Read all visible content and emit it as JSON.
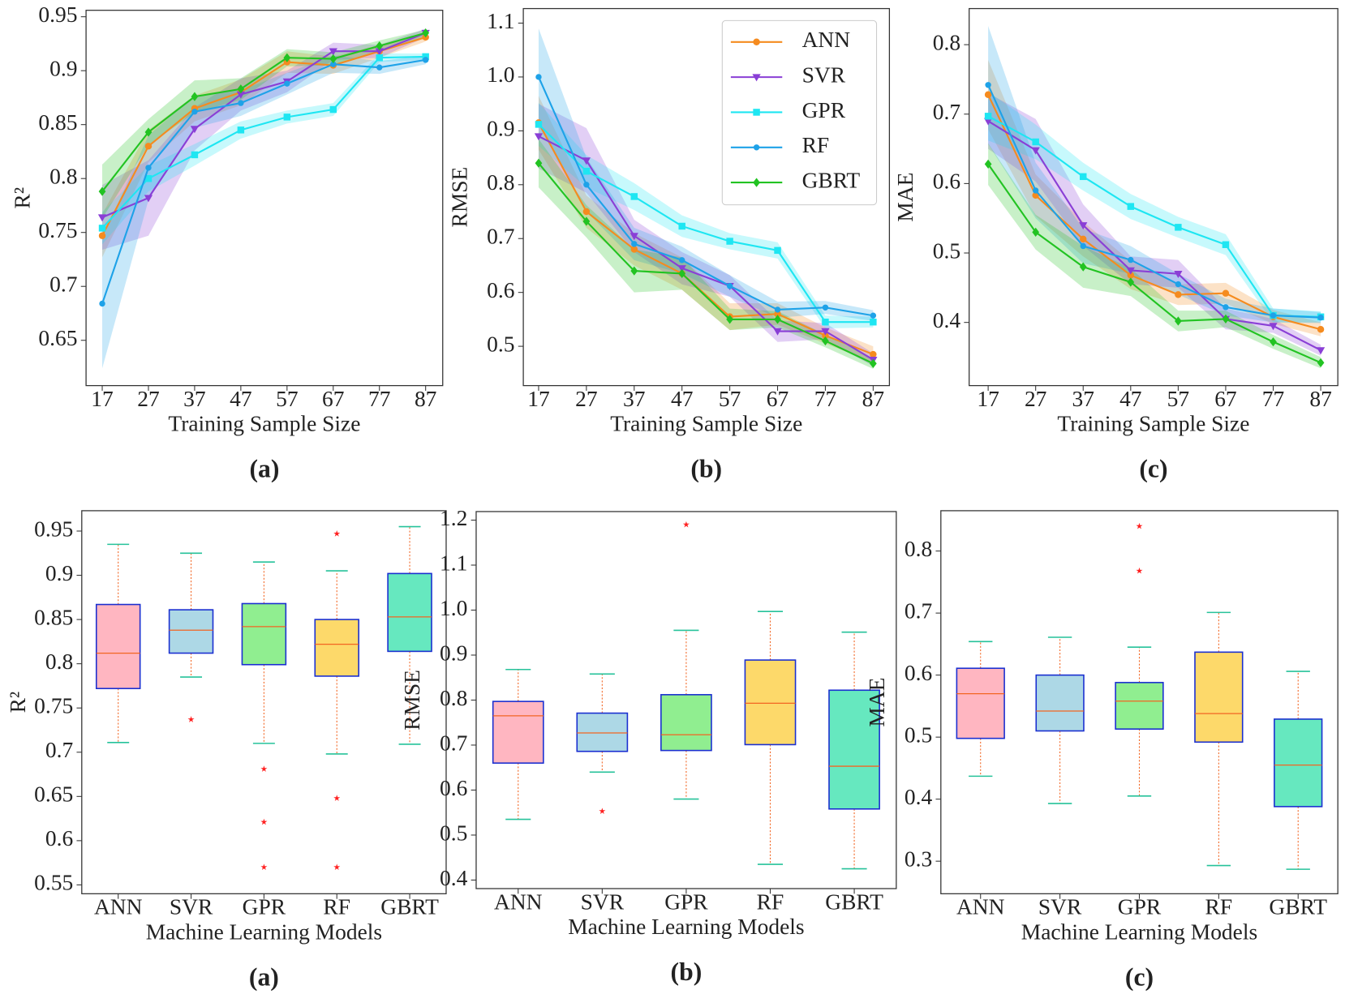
{
  "chart_data": [
    {
      "type": "line",
      "panel_label": "(a)",
      "x_label": "Training Sample Size",
      "y_label": "R²",
      "x": [
        17,
        27,
        37,
        47,
        57,
        67,
        77,
        87
      ],
      "xlim": [
        13.5,
        90.7
      ],
      "xticks": [
        17,
        27,
        37,
        47,
        57,
        67,
        77,
        87
      ],
      "ylim": [
        0.608,
        0.956
      ],
      "yticks": [
        0.65,
        0.7,
        0.75,
        0.8,
        0.85,
        0.9,
        0.95
      ],
      "series": [
        {
          "color": "#f58b1f",
          "marker": "circle",
          "values": [
            0.747,
            0.83,
            0.865,
            0.88,
            0.908,
            0.905,
            0.918,
            0.931
          ],
          "error": [
            0.02,
            0.015,
            0.012,
            0.012,
            0.01,
            0.008,
            0.006,
            0.004
          ]
        },
        {
          "color": "#8a3fd6",
          "marker": "triangle",
          "values": [
            0.764,
            0.782,
            0.846,
            0.878,
            0.89,
            0.918,
            0.918,
            0.935
          ],
          "error": [
            0.03,
            0.035,
            0.02,
            0.015,
            0.01,
            0.008,
            0.006,
            0.004
          ]
        },
        {
          "color": "#1ee6f2",
          "marker": "square",
          "values": [
            0.754,
            0.8,
            0.822,
            0.845,
            0.857,
            0.864,
            0.912,
            0.913
          ],
          "error": [
            0.015,
            0.012,
            0.01,
            0.008,
            0.006,
            0.006,
            0.004,
            0.003
          ]
        },
        {
          "color": "#1ea2e8",
          "marker": "dot",
          "values": [
            0.684,
            0.81,
            0.862,
            0.87,
            0.888,
            0.906,
            0.903,
            0.91
          ],
          "error": [
            0.06,
            0.03,
            0.015,
            0.012,
            0.01,
            0.008,
            0.006,
            0.004
          ]
        },
        {
          "color": "#22c322",
          "marker": "diamond",
          "values": [
            0.788,
            0.843,
            0.876,
            0.883,
            0.912,
            0.911,
            0.923,
            0.935
          ],
          "error": [
            0.025,
            0.012,
            0.015,
            0.01,
            0.008,
            0.006,
            0.005,
            0.003
          ]
        }
      ]
    },
    {
      "type": "line",
      "panel_label": "(b)",
      "x_label": "Training Sample Size",
      "y_label": "RMSE",
      "legend": "upper right",
      "x": [
        17,
        27,
        37,
        47,
        57,
        67,
        77,
        87
      ],
      "xlim": [
        13.8,
        90.4
      ],
      "xticks": [
        17,
        27,
        37,
        47,
        57,
        67,
        77,
        87
      ],
      "ylim": [
        0.427,
        1.127
      ],
      "yticks": [
        0.5,
        0.6,
        0.7,
        0.8,
        0.9,
        {
          "value": 1.0,
          "label": "1.0"
        },
        1.1
      ],
      "series": [
        {
          "name": "ANN",
          "color": "#f58b1f",
          "marker": "circle",
          "values": [
            0.915,
            0.75,
            0.68,
            0.635,
            0.555,
            0.56,
            0.52,
            0.485
          ],
          "error": [
            0.05,
            0.03,
            0.03,
            0.03,
            0.025,
            0.02,
            0.015,
            0.015
          ]
        },
        {
          "name": "SVR",
          "color": "#8a3fd6",
          "marker": "triangle",
          "values": [
            0.89,
            0.845,
            0.705,
            0.645,
            0.612,
            0.528,
            0.528,
            0.475
          ],
          "error": [
            0.06,
            0.06,
            0.03,
            0.03,
            0.02,
            0.02,
            0.015,
            0.012
          ]
        },
        {
          "name": "GPR",
          "color": "#1ee6f2",
          "marker": "square",
          "values": [
            0.912,
            0.825,
            0.778,
            0.723,
            0.695,
            0.678,
            0.545,
            0.545
          ],
          "error": [
            0.04,
            0.03,
            0.025,
            0.02,
            0.015,
            0.015,
            0.012,
            0.01
          ]
        },
        {
          "name": "RF",
          "color": "#1ea2e8",
          "marker": "dot",
          "values": [
            1.0,
            0.8,
            0.69,
            0.66,
            0.612,
            0.568,
            0.572,
            0.557
          ],
          "error": [
            0.09,
            0.05,
            0.03,
            0.025,
            0.02,
            0.015,
            0.012,
            0.01
          ]
        },
        {
          "name": "GBRT",
          "color": "#22c322",
          "marker": "diamond",
          "values": [
            0.84,
            0.732,
            0.64,
            0.635,
            0.55,
            0.55,
            0.51,
            0.468
          ],
          "error": [
            0.045,
            0.03,
            0.04,
            0.03,
            0.02,
            0.015,
            0.012,
            0.01
          ]
        }
      ]
    },
    {
      "type": "line",
      "panel_label": "(c)",
      "x_label": "Training Sample Size",
      "y_label": "MAE",
      "x": [
        17,
        27,
        37,
        47,
        57,
        67,
        77,
        87
      ],
      "xlim": [
        13.0,
        90.6
      ],
      "xticks": [
        17,
        27,
        37,
        47,
        57,
        67,
        77,
        87
      ],
      "ylim": [
        0.309,
        0.852
      ],
      "yticks": [
        0.4,
        0.5,
        0.6,
        0.7,
        0.8
      ],
      "series": [
        {
          "color": "#f58b1f",
          "marker": "circle",
          "values": [
            0.728,
            0.583,
            0.52,
            0.468,
            0.44,
            0.442,
            0.408,
            0.39
          ],
          "error": [
            0.05,
            0.03,
            0.025,
            0.02,
            0.015,
            0.015,
            0.01,
            0.01
          ]
        },
        {
          "color": "#8a3fd6",
          "marker": "triangle",
          "values": [
            0.69,
            0.648,
            0.54,
            0.475,
            0.47,
            0.405,
            0.395,
            0.36
          ],
          "error": [
            0.04,
            0.045,
            0.03,
            0.02,
            0.02,
            0.015,
            0.01,
            0.008
          ]
        },
        {
          "color": "#1ee6f2",
          "marker": "square",
          "values": [
            0.697,
            0.66,
            0.61,
            0.567,
            0.537,
            0.512,
            0.41,
            0.408
          ],
          "error": [
            0.035,
            0.025,
            0.02,
            0.018,
            0.015,
            0.015,
            0.01,
            0.008
          ]
        },
        {
          "color": "#1ea2e8",
          "marker": "dot",
          "values": [
            0.742,
            0.59,
            0.51,
            0.49,
            0.455,
            0.422,
            0.41,
            0.407
          ],
          "error": [
            0.085,
            0.04,
            0.025,
            0.02,
            0.015,
            0.012,
            0.01,
            0.008
          ]
        },
        {
          "color": "#22c322",
          "marker": "diamond",
          "values": [
            0.628,
            0.53,
            0.48,
            0.458,
            0.402,
            0.405,
            0.372,
            0.342
          ],
          "error": [
            0.03,
            0.025,
            0.03,
            0.02,
            0.015,
            0.012,
            0.01,
            0.008
          ]
        }
      ]
    },
    {
      "type": "box",
      "panel_label": "(a)",
      "x_label": "Machine Learning Models",
      "y_label": "R²",
      "categories": [
        "ANN",
        "SVR",
        "GPR",
        "RF",
        "GBRT"
      ],
      "ylim": [
        0.54,
        0.973
      ],
      "yticks": [
        0.55,
        0.6,
        0.65,
        0.7,
        0.75,
        0.8,
        0.85,
        0.9,
        0.95
      ],
      "boxes": [
        {
          "color": "#ffb6c1",
          "whislo": 0.711,
          "q1": 0.772,
          "med": 0.812,
          "q3": 0.867,
          "whishi": 0.935,
          "fliers": []
        },
        {
          "color": "#add8e6",
          "whislo": 0.785,
          "q1": 0.812,
          "med": 0.838,
          "q3": 0.861,
          "whishi": 0.925,
          "fliers": [
            0.737
          ]
        },
        {
          "color": "#90ee90",
          "whislo": 0.71,
          "q1": 0.799,
          "med": 0.842,
          "q3": 0.868,
          "whishi": 0.915,
          "fliers": [
            0.681,
            0.621,
            0.57
          ]
        },
        {
          "color": "#fdd96a",
          "whislo": 0.698,
          "q1": 0.786,
          "med": 0.822,
          "q3": 0.85,
          "whishi": 0.905,
          "fliers": [
            0.947,
            0.648,
            0.57
          ]
        },
        {
          "color": "#66e8bf",
          "whislo": 0.709,
          "q1": 0.814,
          "med": 0.853,
          "q3": 0.902,
          "whishi": 0.955,
          "fliers": []
        }
      ]
    },
    {
      "type": "box",
      "panel_label": "(b)",
      "x_label": "Machine Learning Models",
      "y_label": "RMSE",
      "categories": [
        "ANN",
        "SVR",
        "GPR",
        "RF",
        "GBRT"
      ],
      "ylim": [
        0.381,
        1.219
      ],
      "yticks": [
        0.4,
        0.5,
        0.6,
        0.7,
        0.8,
        0.9,
        {
          "value": 1.0,
          "label": "1.0"
        },
        1.1,
        1.2
      ],
      "boxes": [
        {
          "color": "#ffb6c1",
          "whislo": 0.535,
          "q1": 0.66,
          "med": 0.765,
          "q3": 0.797,
          "whishi": 0.868,
          "fliers": []
        },
        {
          "color": "#add8e6",
          "whislo": 0.64,
          "q1": 0.686,
          "med": 0.727,
          "q3": 0.771,
          "whishi": 0.858,
          "fliers": [
            0.553
          ]
        },
        {
          "color": "#90ee90",
          "whislo": 0.58,
          "q1": 0.688,
          "med": 0.723,
          "q3": 0.812,
          "whishi": 0.955,
          "fliers": [
            1.19
          ]
        },
        {
          "color": "#fdd96a",
          "whislo": 0.435,
          "q1": 0.701,
          "med": 0.793,
          "q3": 0.889,
          "whishi": 0.997,
          "fliers": []
        },
        {
          "color": "#66e8bf",
          "whislo": 0.425,
          "q1": 0.558,
          "med": 0.653,
          "q3": 0.822,
          "whishi": 0.951,
          "fliers": []
        }
      ]
    },
    {
      "type": "box",
      "panel_label": "(c)",
      "x_label": "Machine Learning Models",
      "y_label": "MAE",
      "categories": [
        "ANN",
        "SVR",
        "GPR",
        "RF",
        "GBRT"
      ],
      "ylim": [
        0.2475,
        0.865
      ],
      "yticks": [
        0.3,
        0.4,
        0.5,
        0.6,
        0.7,
        0.8
      ],
      "boxes": [
        {
          "color": "#ffb6c1",
          "whislo": 0.437,
          "q1": 0.498,
          "med": 0.57,
          "q3": 0.611,
          "whishi": 0.654,
          "fliers": []
        },
        {
          "color": "#add8e6",
          "whislo": 0.393,
          "q1": 0.51,
          "med": 0.542,
          "q3": 0.6,
          "whishi": 0.661,
          "fliers": []
        },
        {
          "color": "#90ee90",
          "whislo": 0.405,
          "q1": 0.513,
          "med": 0.558,
          "q3": 0.588,
          "whishi": 0.645,
          "fliers": [
            0.84,
            0.768
          ]
        },
        {
          "color": "#fdd96a",
          "whislo": 0.293,
          "q1": 0.492,
          "med": 0.538,
          "q3": 0.637,
          "whishi": 0.701,
          "fliers": []
        },
        {
          "color": "#66e8bf",
          "whislo": 0.287,
          "q1": 0.388,
          "med": 0.455,
          "q3": 0.529,
          "whishi": 0.606,
          "fliers": []
        }
      ]
    }
  ]
}
